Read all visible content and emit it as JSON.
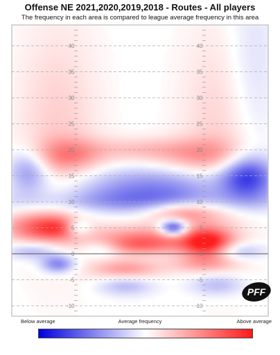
{
  "chart_data": {
    "type": "heatmap",
    "title": "Offense NE 2021,2020,2019,2018 - Routes - All players",
    "subtitle": "The frequency in each area is compared to league average frequency in this area",
    "y_ticks": [
      40,
      35,
      30,
      25,
      20,
      15,
      10,
      5,
      0,
      -5,
      -10
    ],
    "ylim": [
      -12,
      44
    ],
    "x_extent": [
      -26.6,
      26.6
    ],
    "line_of_scrimmage": 0,
    "legend": {
      "low_label": "Below average",
      "mid_label": "Average frequency",
      "high_label": "Above average",
      "colors": [
        "#0000dd",
        "#ffffff",
        "#ff1a1a"
      ]
    },
    "blobs": [
      {
        "x": -17,
        "y": 22,
        "sx": 6,
        "sy": 16,
        "v": 0.22
      },
      {
        "x": 17,
        "y": 22,
        "sx": 6,
        "sy": 16,
        "v": 0.22
      },
      {
        "x": -15,
        "y": 19,
        "sx": 5,
        "sy": 2.2,
        "v": 0.4
      },
      {
        "x": 13,
        "y": 19,
        "sx": 7,
        "sy": 2.2,
        "v": 0.32
      },
      {
        "x": 0,
        "y": 20,
        "sx": 8,
        "sy": 1.6,
        "v": 0.25
      },
      {
        "x": 23,
        "y": 34,
        "sx": 4,
        "sy": 14,
        "v": -0.18
      },
      {
        "x": -23,
        "y": 16,
        "sx": 3,
        "sy": 3,
        "v": -0.45
      },
      {
        "x": 22,
        "y": 15,
        "sx": 4,
        "sy": 3,
        "v": -0.7
      },
      {
        "x": 4,
        "y": 13,
        "sx": 14,
        "sy": 2.5,
        "v": -0.45
      },
      {
        "x": 0,
        "y": 10,
        "sx": 20,
        "sy": 1.6,
        "v": -0.35
      },
      {
        "x": -21,
        "y": 5,
        "sx": 5,
        "sy": 2,
        "v": 0.62
      },
      {
        "x": 9,
        "y": 8,
        "sx": 5,
        "sy": 1.5,
        "v": 0.5
      },
      {
        "x": -16,
        "y": 5,
        "sx": 3,
        "sy": 1.5,
        "v": 0.35
      },
      {
        "x": -13,
        "y": 5,
        "sx": 2,
        "sy": 1.2,
        "v": -0.5
      },
      {
        "x": 7,
        "y": 5,
        "sx": 2,
        "sy": 1.1,
        "v": -0.95
      },
      {
        "x": 2,
        "y": 3,
        "sx": 9,
        "sy": 1.8,
        "v": 0.5
      },
      {
        "x": 14,
        "y": 2,
        "sx": 3.5,
        "sy": 2,
        "v": 0.9
      },
      {
        "x": -1,
        "y": 1.5,
        "sx": 6,
        "sy": 1.2,
        "v": 0.35
      },
      {
        "x": -22,
        "y": 0.6,
        "sx": 4,
        "sy": 1.2,
        "v": -0.35
      },
      {
        "x": -8,
        "y": 1,
        "sx": 3,
        "sy": 1.2,
        "v": -0.3
      },
      {
        "x": 20,
        "y": 0.5,
        "sx": 4,
        "sy": 1.2,
        "v": -0.35
      },
      {
        "x": -17,
        "y": -2,
        "sx": 2.5,
        "sy": 1.2,
        "v": -0.55
      },
      {
        "x": -3,
        "y": -3,
        "sx": 5,
        "sy": 1.4,
        "v": 0.45
      },
      {
        "x": 13,
        "y": -2,
        "sx": 5,
        "sy": 1.2,
        "v": 0.3
      },
      {
        "x": -3,
        "y": -6,
        "sx": 4,
        "sy": 1.4,
        "v": -0.3
      },
      {
        "x": 16,
        "y": -6,
        "sx": 4,
        "sy": 1.5,
        "v": -0.3
      }
    ]
  },
  "logo": {
    "text": "PFF"
  }
}
